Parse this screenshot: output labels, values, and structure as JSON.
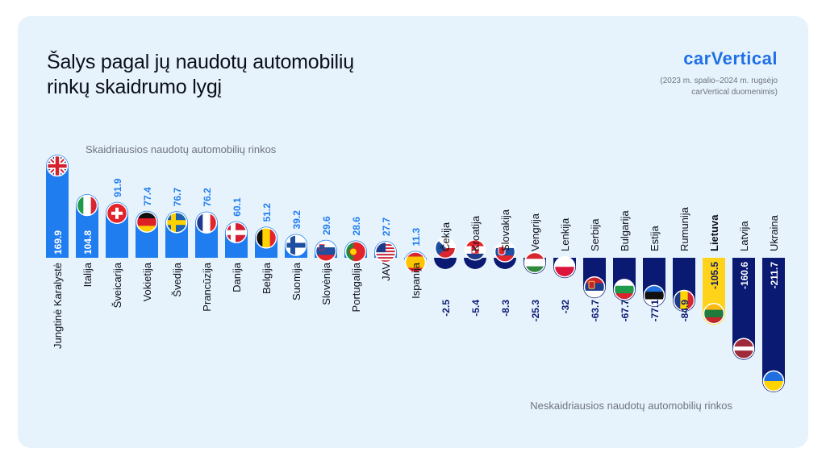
{
  "header": {
    "title_line1": "Šalys pagal jų naudotų automobilių",
    "title_line2": "rinkų skaidrumo lygį",
    "logo": "carVertical",
    "source_line1": "(2023 m. spalio–2024 m. rugsėjo",
    "source_line2": "carVertical duomenimis)"
  },
  "annotations": {
    "top": "Skaidriausios naudotų automobilių rinkos",
    "bottom": "Neskaidriausios naudotų automobilių rinkos"
  },
  "colors": {
    "positive": "#1f7df0",
    "negative": "#0a1a73",
    "highlight": "#ffd31a",
    "background": "#e7f3fc"
  },
  "chart_data": {
    "type": "bar",
    "categories": [
      "Jungtinė Karalystė",
      "Italija",
      "Šveicarija",
      "Vokietija",
      "Švedija",
      "Prancūzija",
      "Danija",
      "Belgija",
      "Suomija",
      "Slovėnija",
      "Portugalija",
      "JAV",
      "Ispanija",
      "Čekija",
      "Kroatija",
      "Slovakija",
      "Vengrija",
      "Lenkija",
      "Serbija",
      "Bulgarija",
      "Estija",
      "Rumunija",
      "Lietuva",
      "Latvija",
      "Ukraina"
    ],
    "value_labels": [
      "169.9",
      "104.8",
      "91.9",
      "77.4",
      "76.7",
      "76.2",
      "60.1",
      "51.2",
      "39.2",
      "29.6",
      "28.6",
      "27.7",
      "11.3",
      "-2.5",
      "-5.4",
      "-8.3",
      "-25.3",
      "-32",
      "-63.7",
      "-67.7",
      "-77.1",
      "-84.9",
      "-105.5",
      "-160.6",
      "-211.7"
    ],
    "values": [
      169.9,
      104.8,
      91.9,
      77.4,
      76.7,
      76.2,
      60.1,
      51.2,
      39.2,
      29.6,
      28.6,
      27.7,
      11.3,
      -2.5,
      -5.4,
      -8.3,
      -25.3,
      -32,
      -63.7,
      -67.7,
      -77.1,
      -84.9,
      -105.5,
      -160.6,
      -211.7
    ],
    "highlight": "Lietuva",
    "flags": [
      "united-kingdom-flag",
      "italy-flag",
      "switzerland-flag",
      "germany-flag",
      "sweden-flag",
      "france-flag",
      "denmark-flag",
      "belgium-flag",
      "finland-flag",
      "slovenia-flag",
      "portugal-flag",
      "usa-flag",
      "spain-flag",
      "czechia-flag",
      "croatia-flag",
      "slovakia-flag",
      "hungary-flag",
      "poland-flag",
      "serbia-flag",
      "bulgaria-flag",
      "estonia-flag",
      "romania-flag",
      "lithuania-flag",
      "latvia-flag",
      "ukraine-flag"
    ],
    "legend": "none",
    "grid": false
  }
}
